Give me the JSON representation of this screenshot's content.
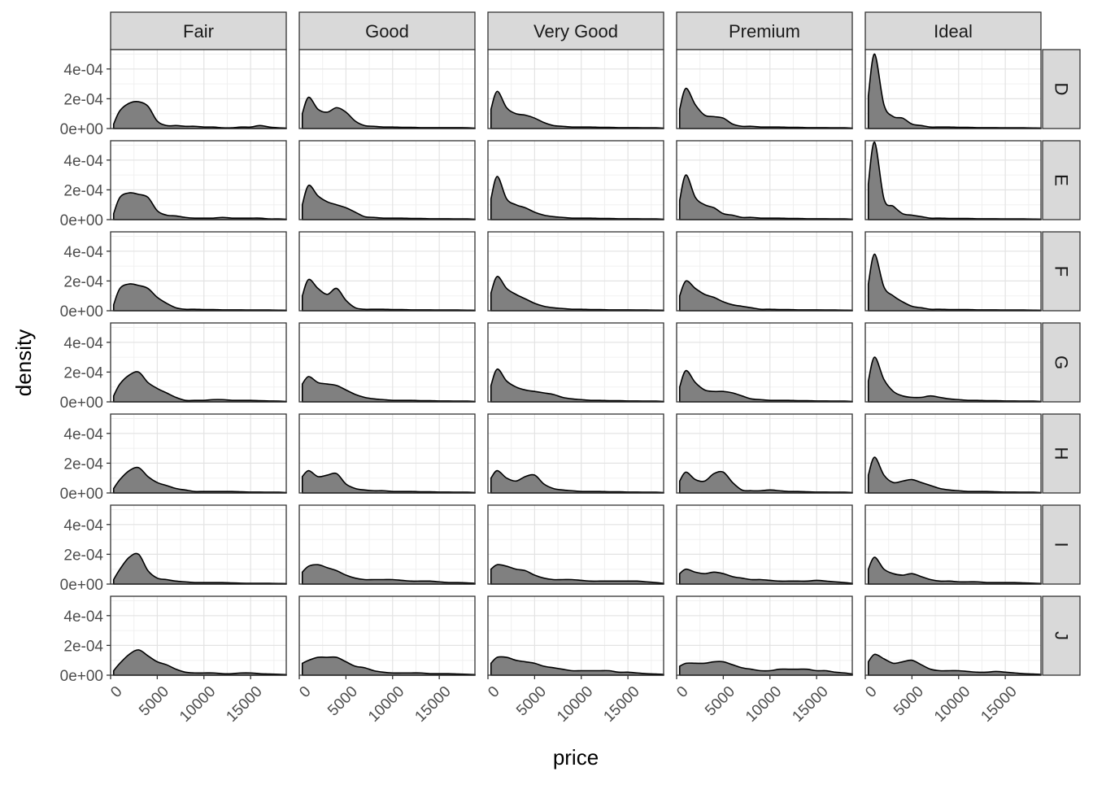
{
  "chart_data": {
    "type": "area",
    "title": "",
    "xlabel": "price",
    "ylabel": "density",
    "facet_cols": [
      "Fair",
      "Good",
      "Very Good",
      "Premium",
      "Ideal"
    ],
    "facet_rows": [
      "D",
      "E",
      "F",
      "G",
      "H",
      "I",
      "J"
    ],
    "xlim": [
      0,
      18823
    ],
    "ylim": [
      0,
      0.00053
    ],
    "x_ticks": [
      0,
      5000,
      10000,
      15000
    ],
    "x_tick_labels": [
      "0",
      "5000",
      "10000",
      "15000"
    ],
    "y_ticks": [
      0,
      0.0002,
      0.0004
    ],
    "y_tick_labels": [
      "0e+00",
      "2e-04",
      "4e-04"
    ],
    "grid": true,
    "legend": "none",
    "x": [
      326,
      1000,
      2000,
      3000,
      4000,
      5000,
      6000,
      7000,
      8000,
      9000,
      10000,
      11000,
      12000,
      13000,
      14000,
      15000,
      16000,
      17000,
      18000,
      18823
    ],
    "panels": [
      {
        "row": "D",
        "col": "Fair",
        "y": [
          3e-05,
          0.00012,
          0.00017,
          0.00018,
          0.00015,
          5e-05,
          2e-05,
          2e-05,
          1.5e-05,
          1.5e-05,
          1e-05,
          1e-05,
          5e-06,
          5e-06,
          1e-05,
          1e-05,
          2e-05,
          1e-05,
          5e-06,
          3e-06
        ]
      },
      {
        "row": "D",
        "col": "Good",
        "y": [
          0.0001,
          0.00021,
          0.00013,
          0.00011,
          0.00014,
          0.00011,
          5e-05,
          2e-05,
          1.5e-05,
          1e-05,
          1e-05,
          8e-06,
          8e-06,
          6e-06,
          6e-06,
          6e-06,
          6e-06,
          6e-06,
          5e-06,
          3e-06
        ]
      },
      {
        "row": "D",
        "col": "Very Good",
        "y": [
          0.00013,
          0.00025,
          0.00014,
          0.0001,
          9e-05,
          7e-05,
          4e-05,
          2e-05,
          1.5e-05,
          1e-05,
          1e-05,
          1e-05,
          8e-06,
          8e-06,
          6e-06,
          6e-06,
          6e-06,
          5e-06,
          5e-06,
          3e-06
        ]
      },
      {
        "row": "D",
        "col": "Premium",
        "y": [
          0.00013,
          0.00027,
          0.00016,
          9e-05,
          8e-05,
          7e-05,
          3e-05,
          1.5e-05,
          1.5e-05,
          1e-05,
          1e-05,
          1e-05,
          8e-06,
          8e-06,
          6e-06,
          6e-06,
          6e-06,
          5e-06,
          5e-06,
          3e-06
        ]
      },
      {
        "row": "D",
        "col": "Ideal",
        "y": [
          0.00022,
          0.0005,
          0.00016,
          8e-05,
          7e-05,
          3e-05,
          2e-05,
          1e-05,
          1e-05,
          1e-05,
          8e-06,
          8e-06,
          6e-06,
          6e-06,
          6e-06,
          5e-06,
          5e-06,
          5e-06,
          4e-06,
          3e-06
        ]
      },
      {
        "row": "E",
        "col": "Fair",
        "y": [
          4e-05,
          0.00015,
          0.00018,
          0.00017,
          0.00015,
          6e-05,
          3e-05,
          2.5e-05,
          1.5e-05,
          1e-05,
          1e-05,
          1e-05,
          1.5e-05,
          1e-05,
          1e-05,
          1e-05,
          1e-05,
          5e-06,
          5e-06,
          3e-06
        ]
      },
      {
        "row": "E",
        "col": "Good",
        "y": [
          0.0001,
          0.00023,
          0.00016,
          0.00012,
          0.0001,
          8e-05,
          5e-05,
          2e-05,
          1.5e-05,
          1e-05,
          1e-05,
          1e-05,
          8e-06,
          8e-06,
          6e-06,
          6e-06,
          6e-06,
          5e-06,
          5e-06,
          3e-06
        ]
      },
      {
        "row": "E",
        "col": "Very Good",
        "y": [
          0.00014,
          0.00029,
          0.00014,
          0.0001,
          8e-05,
          5e-05,
          3e-05,
          2e-05,
          1.5e-05,
          1e-05,
          1e-05,
          1e-05,
          8e-06,
          8e-06,
          6e-06,
          6e-06,
          6e-06,
          5e-06,
          5e-06,
          3e-06
        ]
      },
      {
        "row": "E",
        "col": "Premium",
        "y": [
          0.00013,
          0.0003,
          0.00015,
          0.0001,
          8e-05,
          4e-05,
          3e-05,
          1.5e-05,
          1.5e-05,
          1e-05,
          1e-05,
          1e-05,
          8e-06,
          8e-06,
          6e-06,
          6e-06,
          6e-06,
          5e-06,
          5e-06,
          3e-06
        ]
      },
      {
        "row": "E",
        "col": "Ideal",
        "y": [
          0.00024,
          0.00052,
          0.00014,
          9e-05,
          4e-05,
          3e-05,
          2e-05,
          1e-05,
          1e-05,
          8e-06,
          8e-06,
          8e-06,
          6e-06,
          6e-06,
          6e-06,
          5e-06,
          5e-06,
          5e-06,
          4e-06,
          3e-06
        ]
      },
      {
        "row": "F",
        "col": "Fair",
        "y": [
          4e-05,
          0.00015,
          0.00018,
          0.00017,
          0.00015,
          9e-05,
          5e-05,
          2e-05,
          1e-05,
          1e-05,
          8e-06,
          8e-06,
          6e-06,
          6e-06,
          6e-06,
          5e-06,
          5e-06,
          5e-06,
          4e-06,
          3e-06
        ]
      },
      {
        "row": "F",
        "col": "Good",
        "y": [
          0.0001,
          0.00021,
          0.00015,
          0.00011,
          0.00015,
          7e-05,
          2e-05,
          1e-05,
          1e-05,
          1e-05,
          8e-06,
          8e-06,
          6e-06,
          6e-06,
          6e-06,
          5e-06,
          5e-06,
          5e-06,
          4e-06,
          3e-06
        ]
      },
      {
        "row": "F",
        "col": "Very Good",
        "y": [
          0.00012,
          0.00023,
          0.00015,
          0.00011,
          8e-05,
          5e-05,
          3e-05,
          2e-05,
          1.5e-05,
          1e-05,
          1e-05,
          8e-06,
          8e-06,
          6e-06,
          6e-06,
          6e-06,
          5e-06,
          5e-06,
          4e-06,
          3e-06
        ]
      },
      {
        "row": "F",
        "col": "Premium",
        "y": [
          0.0001,
          0.0002,
          0.00015,
          0.00011,
          9e-05,
          6e-05,
          4e-05,
          3e-05,
          2e-05,
          1e-05,
          1e-05,
          8e-06,
          8e-06,
          6e-06,
          6e-06,
          6e-06,
          5e-06,
          5e-06,
          4e-06,
          3e-06
        ]
      },
      {
        "row": "F",
        "col": "Ideal",
        "y": [
          0.00018,
          0.00038,
          0.00016,
          0.0001,
          6e-05,
          3e-05,
          2e-05,
          1e-05,
          1e-05,
          8e-06,
          8e-06,
          8e-06,
          6e-06,
          6e-06,
          6e-06,
          5e-06,
          5e-06,
          5e-06,
          4e-06,
          3e-06
        ]
      },
      {
        "row": "G",
        "col": "Fair",
        "y": [
          4e-05,
          0.00012,
          0.00018,
          0.0002,
          0.00013,
          9e-05,
          6e-05,
          3e-05,
          1e-05,
          1e-05,
          1e-05,
          1.5e-05,
          1.5e-05,
          1e-05,
          1e-05,
          1e-05,
          8e-06,
          6e-06,
          5e-06,
          3e-06
        ]
      },
      {
        "row": "G",
        "col": "Good",
        "y": [
          0.00012,
          0.00017,
          0.00013,
          0.00012,
          0.00011,
          8e-05,
          5e-05,
          3e-05,
          2e-05,
          1.5e-05,
          1e-05,
          1e-05,
          1e-05,
          8e-06,
          8e-06,
          6e-06,
          6e-06,
          5e-06,
          5e-06,
          3e-06
        ]
      },
      {
        "row": "G",
        "col": "Very Good",
        "y": [
          0.00011,
          0.00022,
          0.00014,
          0.0001,
          8e-05,
          7e-05,
          6e-05,
          5e-05,
          3e-05,
          2e-05,
          1.5e-05,
          1e-05,
          1e-05,
          8e-06,
          8e-06,
          6e-06,
          6e-06,
          5e-06,
          5e-06,
          3e-06
        ]
      },
      {
        "row": "G",
        "col": "Premium",
        "y": [
          0.0001,
          0.00021,
          0.00013,
          8e-05,
          7e-05,
          7e-05,
          6e-05,
          4e-05,
          2e-05,
          1.5e-05,
          1e-05,
          1e-05,
          1e-05,
          8e-06,
          8e-06,
          6e-06,
          6e-06,
          5e-06,
          5e-06,
          3e-06
        ]
      },
      {
        "row": "G",
        "col": "Ideal",
        "y": [
          0.00014,
          0.0003,
          0.00015,
          7e-05,
          4e-05,
          3e-05,
          3e-05,
          4e-05,
          3e-05,
          2e-05,
          1.5e-05,
          1e-05,
          1e-05,
          8e-06,
          8e-06,
          6e-06,
          6e-06,
          5e-06,
          5e-06,
          3e-06
        ]
      },
      {
        "row": "H",
        "col": "Fair",
        "y": [
          3e-05,
          9e-05,
          0.00015,
          0.00017,
          0.00011,
          7e-05,
          5e-05,
          3e-05,
          2e-05,
          1e-05,
          1e-05,
          1e-05,
          1e-05,
          1e-05,
          8e-06,
          6e-06,
          6e-06,
          5e-06,
          5e-06,
          3e-06
        ]
      },
      {
        "row": "H",
        "col": "Good",
        "y": [
          0.00011,
          0.00015,
          0.00011,
          0.00012,
          0.00013,
          6e-05,
          3e-05,
          2e-05,
          1.5e-05,
          1.5e-05,
          1e-05,
          1e-05,
          1e-05,
          8e-06,
          8e-06,
          6e-06,
          6e-06,
          5e-06,
          5e-06,
          3e-06
        ]
      },
      {
        "row": "H",
        "col": "Very Good",
        "y": [
          0.0001,
          0.00015,
          0.0001,
          8e-05,
          0.00011,
          0.00012,
          6e-05,
          3e-05,
          2e-05,
          1.5e-05,
          1e-05,
          1e-05,
          1e-05,
          8e-06,
          8e-06,
          6e-06,
          6e-06,
          5e-06,
          5e-06,
          3e-06
        ]
      },
      {
        "row": "H",
        "col": "Premium",
        "y": [
          8e-05,
          0.00014,
          9e-05,
          8e-05,
          0.00013,
          0.00014,
          7e-05,
          2e-05,
          1.5e-05,
          1.5e-05,
          2e-05,
          1.5e-05,
          1e-05,
          1e-05,
          8e-06,
          6e-06,
          6e-06,
          5e-06,
          5e-06,
          3e-06
        ]
      },
      {
        "row": "H",
        "col": "Ideal",
        "y": [
          0.00012,
          0.00024,
          0.00012,
          7e-05,
          8e-05,
          9e-05,
          7e-05,
          5e-05,
          3e-05,
          2e-05,
          1.5e-05,
          1e-05,
          1e-05,
          1e-05,
          8e-06,
          6e-06,
          6e-06,
          5e-06,
          5e-06,
          3e-06
        ]
      },
      {
        "row": "I",
        "col": "Fair",
        "y": [
          3e-05,
          0.0001,
          0.00018,
          0.0002,
          9e-05,
          4e-05,
          3e-05,
          2e-05,
          1.5e-05,
          1e-05,
          1e-05,
          1e-05,
          1e-05,
          8e-06,
          6e-06,
          5e-06,
          5e-06,
          5e-06,
          4e-06,
          3e-06
        ]
      },
      {
        "row": "I",
        "col": "Good",
        "y": [
          8e-05,
          0.00012,
          0.00013,
          0.00011,
          9e-05,
          6e-05,
          4e-05,
          3e-05,
          3e-05,
          3e-05,
          3e-05,
          2.5e-05,
          2e-05,
          2e-05,
          2e-05,
          1.5e-05,
          1e-05,
          1e-05,
          8e-06,
          5e-06
        ]
      },
      {
        "row": "I",
        "col": "Very Good",
        "y": [
          0.0001,
          0.00013,
          0.00012,
          0.0001,
          9e-05,
          6e-05,
          4e-05,
          3e-05,
          3e-05,
          3e-05,
          2.5e-05,
          2e-05,
          2e-05,
          2e-05,
          2e-05,
          2e-05,
          2e-05,
          1.5e-05,
          1e-05,
          5e-06
        ]
      },
      {
        "row": "I",
        "col": "Premium",
        "y": [
          7e-05,
          0.0001,
          8e-05,
          7e-05,
          8e-05,
          7e-05,
          5e-05,
          4e-05,
          3e-05,
          3e-05,
          2.5e-05,
          2e-05,
          2e-05,
          2e-05,
          2e-05,
          2.5e-05,
          2e-05,
          1.5e-05,
          1e-05,
          5e-06
        ]
      },
      {
        "row": "I",
        "col": "Ideal",
        "y": [
          0.0001,
          0.00018,
          0.0001,
          7e-05,
          6e-05,
          7e-05,
          5e-05,
          3e-05,
          2e-05,
          2e-05,
          1.5e-05,
          1.5e-05,
          1.5e-05,
          1e-05,
          1e-05,
          1e-05,
          1e-05,
          8e-06,
          6e-06,
          4e-06
        ]
      },
      {
        "row": "J",
        "col": "Fair",
        "y": [
          3e-05,
          8e-05,
          0.00014,
          0.00017,
          0.00013,
          9e-05,
          7e-05,
          4e-05,
          2e-05,
          1.5e-05,
          1.5e-05,
          1.5e-05,
          1e-05,
          1e-05,
          1.5e-05,
          1.5e-05,
          1e-05,
          8e-06,
          6e-06,
          4e-06
        ]
      },
      {
        "row": "J",
        "col": "Good",
        "y": [
          8e-05,
          0.0001,
          0.00012,
          0.00012,
          0.00012,
          9e-05,
          6e-05,
          5e-05,
          3e-05,
          2e-05,
          1.5e-05,
          1.5e-05,
          1.5e-05,
          1.5e-05,
          1e-05,
          1e-05,
          1e-05,
          8e-06,
          6e-06,
          4e-06
        ]
      },
      {
        "row": "J",
        "col": "Very Good",
        "y": [
          8e-05,
          0.00012,
          0.00012,
          0.0001,
          9e-05,
          8e-05,
          6e-05,
          5e-05,
          4e-05,
          3e-05,
          3e-05,
          3e-05,
          3e-05,
          3e-05,
          2e-05,
          2e-05,
          1.5e-05,
          1e-05,
          8e-06,
          5e-06
        ]
      },
      {
        "row": "J",
        "col": "Premium",
        "y": [
          6e-05,
          8e-05,
          8e-05,
          8e-05,
          9e-05,
          9e-05,
          7e-05,
          5e-05,
          4e-05,
          3e-05,
          3e-05,
          4e-05,
          4e-05,
          4e-05,
          4e-05,
          3e-05,
          3e-05,
          2e-05,
          1.5e-05,
          8e-06
        ]
      },
      {
        "row": "J",
        "col": "Ideal",
        "y": [
          9e-05,
          0.00014,
          0.00011,
          8e-05,
          9e-05,
          0.0001,
          7e-05,
          4e-05,
          3e-05,
          3e-05,
          3e-05,
          2.5e-05,
          2e-05,
          2e-05,
          2.5e-05,
          2e-05,
          1.5e-05,
          1e-05,
          8e-06,
          5e-06
        ]
      }
    ]
  }
}
